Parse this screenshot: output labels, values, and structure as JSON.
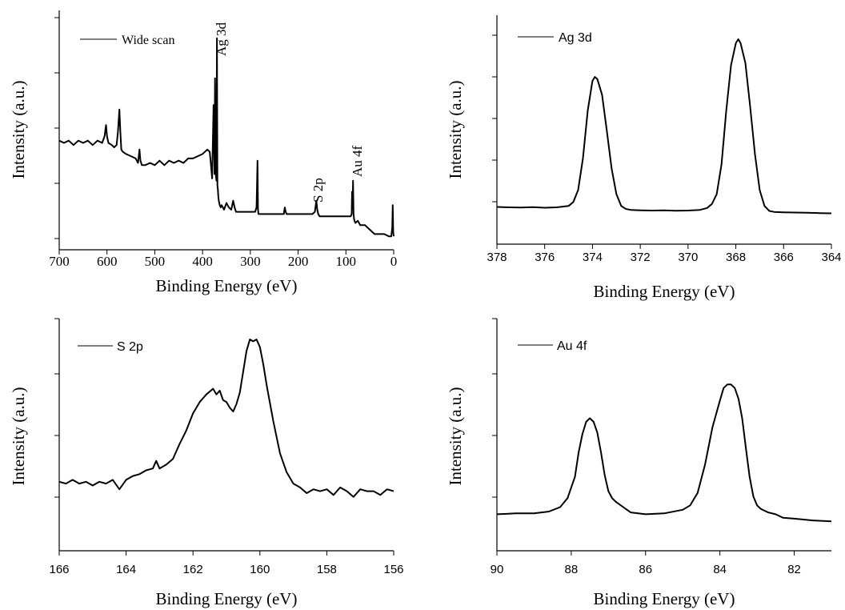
{
  "chart_data": [
    {
      "type": "line",
      "id": "wide",
      "xlabel": "Binding Energy (eV)",
      "ylabel": "Intensity (a.u.)",
      "xlim": [
        700,
        0
      ],
      "x_ticks": [
        "700",
        "600",
        "500",
        "400",
        "300",
        "200",
        "100",
        "0"
      ],
      "ylim": [
        0,
        100
      ],
      "y_minor_ticks": 5,
      "x_reversed": true,
      "legend": "top-left",
      "series": [
        {
          "name": "Wide scan",
          "x": [
            700,
            690,
            680,
            670,
            660,
            650,
            640,
            630,
            620,
            610,
            605,
            602,
            600,
            597,
            590,
            585,
            580,
            577,
            574,
            572,
            570,
            567,
            560,
            550,
            540,
            535,
            532,
            530,
            527,
            520,
            510,
            500,
            490,
            480,
            470,
            460,
            450,
            440,
            430,
            420,
            410,
            400,
            390,
            385,
            382,
            380,
            377,
            375,
            374,
            373,
            371,
            370,
            369,
            368,
            367,
            366,
            365,
            364,
            362,
            360,
            355,
            350,
            345,
            340,
            336,
            333,
            330,
            320,
            300,
            290,
            287,
            285,
            284,
            283,
            280,
            270,
            260,
            240,
            230,
            228,
            226,
            224,
            220,
            200,
            180,
            170,
            165,
            162,
            160,
            158,
            155,
            150,
            140,
            130,
            120,
            110,
            100,
            95,
            90,
            88,
            87,
            86,
            85,
            84,
            83,
            82,
            80,
            75,
            70,
            60,
            50,
            40,
            30,
            20,
            10,
            5,
            3,
            2,
            1,
            0
          ],
          "values": [
            44,
            43,
            44,
            42,
            44,
            43,
            44,
            42,
            44,
            43,
            46,
            51,
            46,
            43,
            42,
            41,
            42,
            48,
            58,
            48,
            40,
            39,
            38,
            37,
            36,
            34,
            40,
            35,
            33,
            33,
            34,
            33,
            35,
            33,
            35,
            34,
            35,
            34,
            36,
            36,
            37,
            38,
            40,
            39,
            32,
            27,
            60,
            29,
            72,
            30,
            26,
            90,
            24,
            22,
            19,
            17,
            16,
            15,
            14,
            15,
            13,
            16,
            14,
            13,
            17,
            14,
            12,
            12,
            12,
            12,
            14,
            35,
            13,
            11,
            11,
            11,
            11,
            11,
            11,
            14,
            12,
            11,
            11,
            11,
            11,
            11,
            12,
            17,
            13,
            11,
            10,
            10,
            10,
            10,
            10,
            10,
            10,
            10,
            10,
            11,
            21,
            14,
            26,
            11,
            9,
            8,
            7,
            8,
            6,
            6,
            4,
            2,
            2,
            2,
            1,
            1,
            5,
            15,
            3,
            1
          ]
        }
      ],
      "annotations": [
        {
          "text": "Ag 3d",
          "x": 368
        },
        {
          "text": "S 2p",
          "x": 162
        },
        {
          "text": "Au 4f",
          "x": 85
        }
      ]
    },
    {
      "type": "line",
      "id": "ag",
      "xlabel": "Binding Energy (eV)",
      "ylabel": "Intensity (a.u.)",
      "xlim": [
        378,
        364
      ],
      "x_ticks": [
        "378",
        "376",
        "374",
        "372",
        "370",
        "368",
        "366",
        "364"
      ],
      "ylim": [
        0,
        100
      ],
      "y_minor_ticks": 5,
      "x_reversed": true,
      "legend": "top-left",
      "series": [
        {
          "name": "Ag 3d",
          "x": [
            378,
            377.5,
            377,
            376.5,
            376,
            375.5,
            375,
            374.8,
            374.6,
            374.4,
            374.2,
            374.0,
            373.9,
            373.8,
            373.6,
            373.4,
            373.2,
            373.0,
            372.8,
            372.6,
            372.4,
            372,
            371.5,
            371,
            370.5,
            370,
            369.5,
            369.2,
            369,
            368.8,
            368.6,
            368.4,
            368.2,
            368.0,
            367.9,
            367.8,
            367.6,
            367.4,
            367.2,
            367.0,
            366.8,
            366.6,
            366.4,
            366,
            365.5,
            365,
            364.5,
            364
          ],
          "values": [
            13.5,
            13.3,
            13.2,
            13.4,
            13.1,
            13.3,
            14,
            16,
            22,
            38,
            62,
            77,
            79,
            78,
            70,
            52,
            33,
            20,
            14,
            12.5,
            12,
            11.8,
            11.7,
            11.8,
            11.6,
            11.7,
            12,
            13,
            15,
            20,
            35,
            62,
            85,
            96,
            98,
            96,
            86,
            64,
            40,
            22,
            14,
            11.5,
            11,
            10.8,
            10.7,
            10.6,
            10.4,
            10.3
          ]
        }
      ]
    },
    {
      "type": "line",
      "id": "s2p",
      "xlabel": "Binding Energy (eV)",
      "ylabel": "Intensity (a.u.)",
      "xlim": [
        166,
        156
      ],
      "x_ticks": [
        "166",
        "164",
        "162",
        "160",
        "158",
        "156"
      ],
      "ylim": [
        0,
        100
      ],
      "y_minor_ticks": 5,
      "x_reversed": true,
      "legend": "top-left",
      "series": [
        {
          "name": "S 2p",
          "x": [
            166,
            165.8,
            165.6,
            165.4,
            165.2,
            165.0,
            164.8,
            164.6,
            164.4,
            164.2,
            164.0,
            163.8,
            163.6,
            163.4,
            163.2,
            163.1,
            163.0,
            162.8,
            162.6,
            162.4,
            162.2,
            162.0,
            161.8,
            161.6,
            161.4,
            161.3,
            161.2,
            161.1,
            161.0,
            160.9,
            160.8,
            160.7,
            160.6,
            160.5,
            160.4,
            160.3,
            160.2,
            160.1,
            160.0,
            159.9,
            159.8,
            159.6,
            159.4,
            159.2,
            159.0,
            158.8,
            158.6,
            158.4,
            158.2,
            158.0,
            157.8,
            157.6,
            157.4,
            157.2,
            157.0,
            156.8,
            156.6,
            156.4,
            156.2,
            156
          ],
          "values": [
            25,
            24,
            26,
            24,
            25,
            23,
            25,
            24,
            26,
            21,
            26,
            28,
            29,
            31,
            32,
            36,
            32,
            34,
            37,
            45,
            52,
            61,
            67,
            71,
            74,
            71,
            73,
            68,
            67,
            64,
            62,
            66,
            72,
            83,
            94,
            100,
            99,
            100,
            96,
            87,
            76,
            57,
            40,
            30,
            24,
            22,
            19,
            21,
            20,
            21,
            18,
            22,
            20,
            17,
            21,
            20,
            20,
            18,
            21,
            20
          ]
        }
      ]
    },
    {
      "type": "line",
      "id": "au",
      "xlabel": "Binding Energy (eV)",
      "ylabel": "Intensity (a.u.)",
      "xlim": [
        90,
        81
      ],
      "x_ticks": [
        "90",
        "88",
        "86",
        "84",
        "82"
      ],
      "ylim": [
        0,
        100
      ],
      "y_minor_ticks": 5,
      "x_reversed": true,
      "legend": "top-left",
      "series": [
        {
          "name": "Au 4f",
          "x": [
            90,
            89.5,
            89,
            88.6,
            88.3,
            88.1,
            87.9,
            87.8,
            87.7,
            87.6,
            87.5,
            87.4,
            87.3,
            87.2,
            87.1,
            87.0,
            86.9,
            86.8,
            86.6,
            86.4,
            86.2,
            86,
            85.5,
            85.0,
            84.8,
            84.6,
            84.4,
            84.2,
            84.0,
            83.9,
            83.8,
            83.7,
            83.6,
            83.5,
            83.4,
            83.3,
            83.2,
            83.1,
            83.0,
            82.9,
            82.7,
            82.5,
            82.3,
            82,
            81.5,
            81
          ],
          "values": [
            12,
            12.5,
            12.5,
            13.5,
            16,
            21,
            33,
            47,
            57,
            64,
            66,
            64,
            58,
            47,
            34,
            25,
            21,
            19,
            16,
            13,
            12.5,
            12,
            12.5,
            14.5,
            17,
            24,
            40,
            61,
            76,
            83,
            85,
            85,
            83,
            77,
            66,
            49,
            33,
            22,
            17,
            15,
            13,
            12,
            10,
            9.5,
            8.5,
            8
          ]
        }
      ]
    }
  ]
}
